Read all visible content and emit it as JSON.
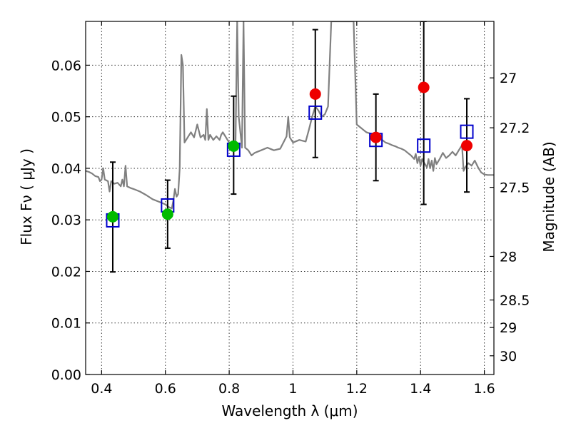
{
  "chart_data": {
    "type": "scatter",
    "title": "",
    "xlabel": "Wavelength  λ (μm)",
    "ylabel": "Flux  Fν ( μJy )",
    "ylabel_right": "Magnitude (AB)",
    "xlim": [
      0.35,
      1.63
    ],
    "ylim": [
      0.0,
      0.0685
    ],
    "grid": true,
    "x_ticks": [
      0.4,
      0.6,
      0.8,
      1.0,
      1.2,
      1.4,
      1.6
    ],
    "x_tick_labels": [
      "0.4",
      "0.6",
      "0.8",
      "1",
      "1.2",
      "1.4",
      "1.6"
    ],
    "y_ticks": [
      0.0,
      0.01,
      0.02,
      0.03,
      0.04,
      0.05,
      0.06
    ],
    "y_tick_labels": [
      "0.00",
      "0.01",
      "0.02",
      "0.03",
      "0.04",
      "0.05",
      "0.06"
    ],
    "right_ticks": [
      {
        "mag": 27,
        "label": "27"
      },
      {
        "mag": 27.2,
        "label": "27.2"
      },
      {
        "mag": 27.5,
        "label": "27.5"
      },
      {
        "mag": 28,
        "label": "28"
      },
      {
        "mag": 28.5,
        "label": "28.5"
      },
      {
        "mag": 29,
        "label": "29"
      },
      {
        "mag": 30,
        "label": "30"
      }
    ],
    "colors": {
      "spectrum": "#808080",
      "observed_detection": "#00bb00",
      "observed_lowsn": "#ee0000",
      "model_box": "#0000cc",
      "errorbar": "#000000"
    },
    "series": [
      {
        "kind": "model_spectrum",
        "points": [
          [
            0.35,
            0.0395
          ],
          [
            0.36,
            0.0393
          ],
          [
            0.37,
            0.039
          ],
          [
            0.38,
            0.0385
          ],
          [
            0.39,
            0.0383
          ],
          [
            0.395,
            0.0375
          ],
          [
            0.4,
            0.0378
          ],
          [
            0.405,
            0.04
          ],
          [
            0.41,
            0.0378
          ],
          [
            0.42,
            0.0375
          ],
          [
            0.425,
            0.0355
          ],
          [
            0.43,
            0.0375
          ],
          [
            0.44,
            0.037
          ],
          [
            0.45,
            0.0372
          ],
          [
            0.46,
            0.0365
          ],
          [
            0.465,
            0.0378
          ],
          [
            0.47,
            0.0365
          ],
          [
            0.475,
            0.0405
          ],
          [
            0.48,
            0.0365
          ],
          [
            0.49,
            0.0362
          ],
          [
            0.5,
            0.036
          ],
          [
            0.52,
            0.0355
          ],
          [
            0.54,
            0.0348
          ],
          [
            0.56,
            0.034
          ],
          [
            0.58,
            0.0335
          ],
          [
            0.6,
            0.033
          ],
          [
            0.61,
            0.0325
          ],
          [
            0.62,
            0.0322
          ],
          [
            0.625,
            0.0338
          ],
          [
            0.63,
            0.036
          ],
          [
            0.635,
            0.0345
          ],
          [
            0.64,
            0.035
          ],
          [
            0.645,
            0.04
          ],
          [
            0.65,
            0.062
          ],
          [
            0.655,
            0.06
          ],
          [
            0.66,
            0.045
          ],
          [
            0.67,
            0.046
          ],
          [
            0.68,
            0.047
          ],
          [
            0.69,
            0.046
          ],
          [
            0.7,
            0.0485
          ],
          [
            0.71,
            0.046
          ],
          [
            0.72,
            0.0465
          ],
          [
            0.725,
            0.0455
          ],
          [
            0.73,
            0.0515
          ],
          [
            0.735,
            0.0455
          ],
          [
            0.74,
            0.0465
          ],
          [
            0.75,
            0.0455
          ],
          [
            0.76,
            0.0462
          ],
          [
            0.77,
            0.0455
          ],
          [
            0.775,
            0.0465
          ],
          [
            0.78,
            0.047
          ],
          [
            0.785,
            0.0465
          ],
          [
            0.79,
            0.046
          ],
          [
            0.8,
            0.045
          ],
          [
            0.81,
            0.0445
          ],
          [
            0.82,
            0.045
          ],
          [
            0.825,
            0.072
          ],
          [
            0.83,
            0.05
          ],
          [
            0.84,
            0.044
          ],
          [
            0.845,
            0.072
          ],
          [
            0.85,
            0.044
          ],
          [
            0.86,
            0.0435
          ],
          [
            0.87,
            0.0425
          ],
          [
            0.88,
            0.043
          ],
          [
            0.9,
            0.0435
          ],
          [
            0.92,
            0.044
          ],
          [
            0.94,
            0.0435
          ],
          [
            0.96,
            0.0438
          ],
          [
            0.97,
            0.045
          ],
          [
            0.98,
            0.0462
          ],
          [
            0.985,
            0.05
          ],
          [
            0.99,
            0.046
          ],
          [
            1.0,
            0.045
          ],
          [
            1.02,
            0.0455
          ],
          [
            1.04,
            0.0452
          ],
          [
            1.05,
            0.0475
          ],
          [
            1.06,
            0.05
          ],
          [
            1.07,
            0.052
          ],
          [
            1.08,
            0.0512
          ],
          [
            1.09,
            0.05
          ],
          [
            1.1,
            0.0505
          ],
          [
            1.11,
            0.052
          ],
          [
            1.12,
            0.072
          ],
          [
            1.13,
            0.07
          ],
          [
            1.14,
            0.0685
          ],
          [
            1.15,
            0.069
          ],
          [
            1.16,
            0.0685
          ],
          [
            1.17,
            0.072
          ],
          [
            1.18,
            0.072
          ],
          [
            1.19,
            0.072
          ],
          [
            1.2,
            0.0485
          ],
          [
            1.21,
            0.048
          ],
          [
            1.22,
            0.0475
          ],
          [
            1.23,
            0.047
          ],
          [
            1.24,
            0.0468
          ],
          [
            1.25,
            0.0465
          ],
          [
            1.26,
            0.0462
          ],
          [
            1.27,
            0.046
          ],
          [
            1.28,
            0.0455
          ],
          [
            1.29,
            0.045
          ],
          [
            1.3,
            0.0448
          ],
          [
            1.31,
            0.0445
          ],
          [
            1.32,
            0.0443
          ],
          [
            1.33,
            0.044
          ],
          [
            1.34,
            0.0438
          ],
          [
            1.35,
            0.0435
          ],
          [
            1.36,
            0.043
          ],
          [
            1.37,
            0.0425
          ],
          [
            1.38,
            0.0418
          ],
          [
            1.385,
            0.0428
          ],
          [
            1.39,
            0.041
          ],
          [
            1.395,
            0.0422
          ],
          [
            1.4,
            0.0405
          ],
          [
            1.405,
            0.0418
          ],
          [
            1.41,
            0.0412
          ],
          [
            1.42,
            0.0402
          ],
          [
            1.425,
            0.0418
          ],
          [
            1.43,
            0.04
          ],
          [
            1.435,
            0.0415
          ],
          [
            1.44,
            0.0395
          ],
          [
            1.445,
            0.042
          ],
          [
            1.45,
            0.0408
          ],
          [
            1.46,
            0.0418
          ],
          [
            1.47,
            0.043
          ],
          [
            1.48,
            0.042
          ],
          [
            1.49,
            0.0425
          ],
          [
            1.5,
            0.0432
          ],
          [
            1.51,
            0.0425
          ],
          [
            1.52,
            0.0435
          ],
          [
            1.53,
            0.0445
          ],
          [
            1.535,
            0.0395
          ],
          [
            1.54,
            0.0402
          ],
          [
            1.55,
            0.041
          ],
          [
            1.56,
            0.0405
          ],
          [
            1.57,
            0.0415
          ],
          [
            1.58,
            0.0402
          ],
          [
            1.59,
            0.0392
          ],
          [
            1.6,
            0.0388
          ],
          [
            1.61,
            0.0387
          ],
          [
            1.62,
            0.0387
          ],
          [
            1.63,
            0.0387
          ]
        ]
      },
      {
        "kind": "observed",
        "points": [
          {
            "x": 0.435,
            "y": 0.0306,
            "yerr_low": 0.0199,
            "yerr_high": 0.0412,
            "color": "green"
          },
          {
            "x": 0.607,
            "y": 0.0311,
            "yerr_low": 0.0245,
            "yerr_high": 0.0377,
            "color": "green"
          },
          {
            "x": 0.814,
            "y": 0.0443,
            "yerr_low": 0.035,
            "yerr_high": 0.054,
            "color": "green"
          },
          {
            "x": 1.07,
            "y": 0.0544,
            "yerr_low": 0.0421,
            "yerr_high": 0.0669,
            "color": "red"
          },
          {
            "x": 1.26,
            "y": 0.046,
            "yerr_low": 0.0376,
            "yerr_high": 0.0544,
            "color": "red"
          },
          {
            "x": 1.41,
            "y": 0.0557,
            "yerr_low": 0.033,
            "yerr_high": 0.072,
            "color": "red"
          },
          {
            "x": 1.545,
            "y": 0.0444,
            "yerr_low": 0.0354,
            "yerr_high": 0.0535,
            "color": "red"
          }
        ]
      },
      {
        "kind": "model_photometry",
        "points": [
          {
            "x": 0.435,
            "y": 0.0299
          },
          {
            "x": 0.607,
            "y": 0.0328
          },
          {
            "x": 0.814,
            "y": 0.0436
          },
          {
            "x": 1.07,
            "y": 0.0508
          },
          {
            "x": 1.26,
            "y": 0.0455
          },
          {
            "x": 1.41,
            "y": 0.0444
          },
          {
            "x": 1.545,
            "y": 0.0471
          }
        ]
      }
    ]
  }
}
